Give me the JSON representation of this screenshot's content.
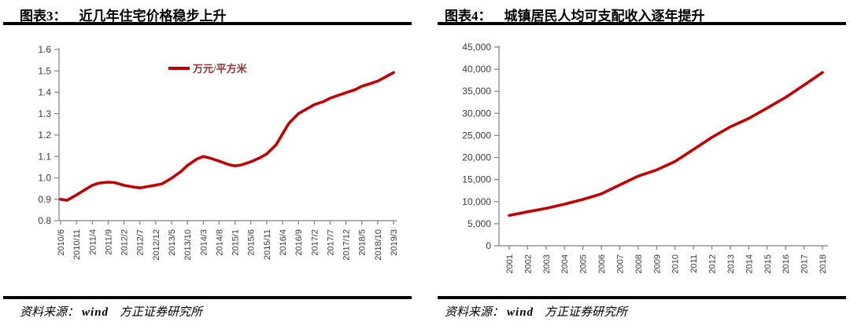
{
  "accent_color": "#C00000",
  "panels": [
    {
      "figure_label": "图表3：",
      "title": "近几年住宅价格稳步上升",
      "source_prefix": "资料来源：",
      "source_vendor": "wind",
      "source_org": "方正证券研究所"
    },
    {
      "figure_label": "图表4：",
      "title": "城镇居民人均可支配收入逐年提升",
      "source_prefix": "资料来源：",
      "source_vendor": "wind",
      "source_org": "方正证券研究所"
    }
  ],
  "chart_data": [
    {
      "type": "line",
      "title": "近几年住宅价格稳步上升",
      "legend": [
        "万元/平方米"
      ],
      "legend_position": "top-center",
      "line_color": "#C00000",
      "grid": false,
      "ylim": [
        0.8,
        1.6
      ],
      "y_tick_step": 0.1,
      "y_tick_labels": [
        "0.8",
        "0.9",
        "1.0",
        "1.1",
        "1.2",
        "1.3",
        "1.4",
        "1.5",
        "1.6"
      ],
      "x_tick_labels": [
        "2010/6",
        "2010/11",
        "2011/4",
        "2011/9",
        "2012/2",
        "2012/7",
        "2012/12",
        "2013/5",
        "2013/10",
        "2014/3",
        "2014/8",
        "2015/1",
        "2015/6",
        "2015/11",
        "2016/4",
        "2016/9",
        "2017/2",
        "2017/7",
        "2017/12",
        "2018/5",
        "2018/10",
        "2019/3"
      ],
      "months_per_tick": 5,
      "x_total_months": 105,
      "points_note": "pairs of [months since 2010/6, value in 万元/平方米]",
      "points": [
        [
          0,
          0.9
        ],
        [
          2,
          0.895
        ],
        [
          5,
          0.92
        ],
        [
          8,
          0.947
        ],
        [
          10,
          0.965
        ],
        [
          12,
          0.975
        ],
        [
          15,
          0.98
        ],
        [
          17,
          0.978
        ],
        [
          20,
          0.965
        ],
        [
          23,
          0.957
        ],
        [
          25,
          0.953
        ],
        [
          27,
          0.958
        ],
        [
          30,
          0.966
        ],
        [
          32,
          0.972
        ],
        [
          35,
          0.998
        ],
        [
          38,
          1.03
        ],
        [
          40,
          1.058
        ],
        [
          43,
          1.088
        ],
        [
          45,
          1.1
        ],
        [
          47,
          1.093
        ],
        [
          50,
          1.078
        ],
        [
          53,
          1.062
        ],
        [
          55,
          1.056
        ],
        [
          57,
          1.06
        ],
        [
          60,
          1.075
        ],
        [
          63,
          1.095
        ],
        [
          65,
          1.112
        ],
        [
          68,
          1.155
        ],
        [
          70,
          1.205
        ],
        [
          72,
          1.255
        ],
        [
          75,
          1.3
        ],
        [
          78,
          1.325
        ],
        [
          80,
          1.342
        ],
        [
          83,
          1.357
        ],
        [
          85,
          1.372
        ],
        [
          88,
          1.388
        ],
        [
          90,
          1.398
        ],
        [
          93,
          1.413
        ],
        [
          95,
          1.428
        ],
        [
          98,
          1.442
        ],
        [
          100,
          1.452
        ],
        [
          102,
          1.468
        ],
        [
          105,
          1.492
        ]
      ]
    },
    {
      "type": "line",
      "title": "城镇居民人均可支配收入逐年提升",
      "legend": [],
      "line_color": "#C00000",
      "grid": false,
      "ylim": [
        0,
        45000
      ],
      "y_tick_step": 5000,
      "y_tick_labels": [
        "0",
        "5,000",
        "10,000",
        "15,000",
        "20,000",
        "25,000",
        "30,000",
        "35,000",
        "40,000",
        "45,000"
      ],
      "categories": [
        "2001",
        "2002",
        "2003",
        "2004",
        "2005",
        "2006",
        "2007",
        "2008",
        "2009",
        "2010",
        "2011",
        "2012",
        "2013",
        "2014",
        "2015",
        "2016",
        "2017",
        "2018"
      ],
      "values": [
        6860,
        7703,
        8472,
        9422,
        10493,
        11759,
        13786,
        15781,
        17175,
        19109,
        21810,
        24565,
        26955,
        28844,
        31195,
        33616,
        36396,
        39251
      ]
    }
  ]
}
